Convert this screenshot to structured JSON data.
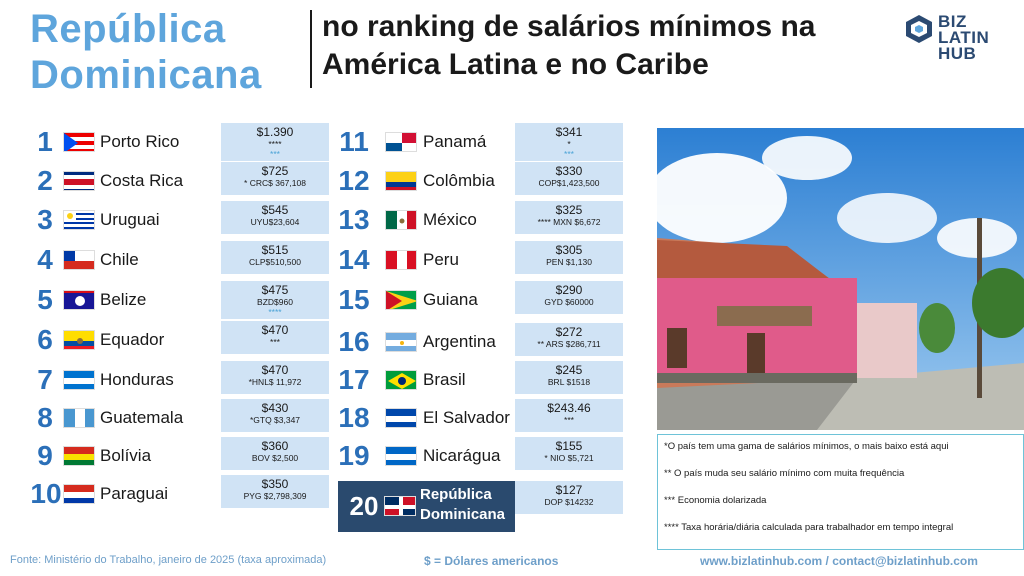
{
  "header": {
    "title_main": "República Dominicana",
    "title_sub": "no ranking de salários mínimos na América Latina e no Caribe"
  },
  "logo": {
    "line1": "BIZ LATIN",
    "line2": "HUB"
  },
  "left_column": [
    {
      "rank": "1",
      "country": "Porto Rico",
      "salary": "$1.390",
      "sub": "****",
      "sub2": "***",
      "flag": "puerto-rico"
    },
    {
      "rank": "2",
      "country": "Costa Rica",
      "salary": "$725",
      "sub": "* CRC$ 367,108",
      "flag": "costa-rica"
    },
    {
      "rank": "3",
      "country": "Uruguai",
      "salary": "$545",
      "sub": "UYU$23,604",
      "flag": "uruguay"
    },
    {
      "rank": "4",
      "country": "Chile",
      "salary": "$515",
      "sub": "CLP$510,500",
      "flag": "chile"
    },
    {
      "rank": "5",
      "country": "Belize",
      "salary": "$475",
      "sub": "BZD$960",
      "sub2": "****",
      "flag": "belize"
    },
    {
      "rank": "6",
      "country": "Equador",
      "salary": "$470",
      "sub": "***",
      "flag": "ecuador"
    },
    {
      "rank": "7",
      "country": "Honduras",
      "salary": "$470",
      "sub": "*HNL$ 11,972",
      "flag": "honduras"
    },
    {
      "rank": "8",
      "country": "Guatemala",
      "salary": "$430",
      "sub": "*GTQ $3,347",
      "flag": "guatemala"
    },
    {
      "rank": "9",
      "country": "Bolívia",
      "salary": "$360",
      "sub": "BOV $2,500",
      "flag": "bolivia"
    },
    {
      "rank": "10",
      "country": "Paraguai",
      "salary": "$350",
      "sub": "PYG $2,798,309",
      "flag": "paraguay"
    }
  ],
  "right_column": [
    {
      "rank": "11",
      "country": "Panamá",
      "salary": "$341",
      "sub": "*",
      "sub2": "***",
      "flag": "panama"
    },
    {
      "rank": "12",
      "country": "Colômbia",
      "salary": "$330",
      "sub": "COP$1,423,500",
      "flag": "colombia"
    },
    {
      "rank": "13",
      "country": "México",
      "salary": "$325",
      "sub": "**** MXN $6,672",
      "flag": "mexico"
    },
    {
      "rank": "14",
      "country": "Peru",
      "salary": "$305",
      "sub": "PEN $1,130",
      "flag": "peru"
    },
    {
      "rank": "15",
      "country": "Guiana",
      "salary": "$290",
      "sub": "GYD $60000",
      "flag": "guyana"
    },
    {
      "rank": "16",
      "country": "Argentina",
      "salary": "$272",
      "sub": "** ARS $286,711",
      "flag": "argentina"
    },
    {
      "rank": "17",
      "country": "Brasil",
      "salary": "$245",
      "sub": "BRL $1518",
      "flag": "brazil"
    },
    {
      "rank": "18",
      "country": "El Salvador",
      "salary": "$243.46",
      "sub": "***",
      "flag": "el-salvador"
    },
    {
      "rank": "19",
      "country": "Nicarágua",
      "salary": "$155",
      "sub": "* NIO $5,721",
      "flag": "nicaragua"
    }
  ],
  "highlight": {
    "rank": "20",
    "country_line1": "República",
    "country_line2": "Dominicana",
    "salary": "$127",
    "sub": "DOP $14232"
  },
  "notes": [
    "*O país tem uma gama de salários mínimos, o mais baixo está aqui",
    "** O país muda seu salário mínimo com muita frequência",
    "*** Economia dolarizada",
    "**** Taxa horária/diária calculada para trabalhador em tempo integral"
  ],
  "footer": {
    "source": "Fonte: Ministério do Trabalho, janeiro de 2025 (taxa aproximada)",
    "currency": "$ = Dólares americanos",
    "contact": "www.bizlatinhub.com / contact@bizlatinhub.com"
  },
  "colors": {
    "title_blue": "#5ea5dc",
    "rank_blue": "#2b6fb8",
    "salary_box": "#d0e3f5",
    "highlight_navy": "#2a4a6e"
  }
}
